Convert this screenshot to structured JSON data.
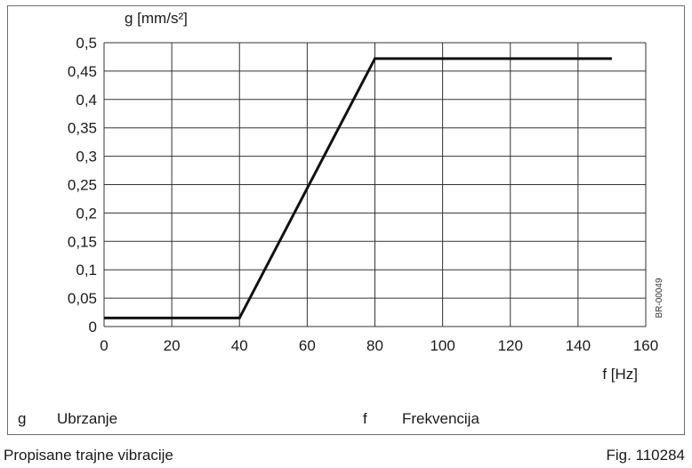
{
  "chart_data": {
    "type": "line",
    "ylabel": "g [mm/s²]",
    "xlabel": "f [Hz]",
    "xlim": [
      0,
      160
    ],
    "ylim": [
      0,
      0.5
    ],
    "x_ticks": [
      0,
      20,
      40,
      60,
      80,
      100,
      120,
      140,
      160
    ],
    "y_ticks": [
      0,
      0.05,
      0.1,
      0.15,
      0.2,
      0.25,
      0.3,
      0.35,
      0.4,
      0.45,
      0.5
    ],
    "x_tick_labels": [
      "0",
      "20",
      "40",
      "60",
      "80",
      "100",
      "120",
      "140",
      "160"
    ],
    "y_tick_labels": [
      "0",
      "0,05",
      "0,1",
      "0,15",
      "0,2",
      "0,25",
      "0,3",
      "0,35",
      "0,4",
      "0,45",
      "0,5"
    ],
    "grid": true,
    "series": [
      {
        "x": [
          0,
          40,
          80,
          150
        ],
        "y": [
          0.015,
          0.015,
          0.472,
          0.472
        ]
      }
    ],
    "side_code": "BR-00049"
  },
  "legend": [
    {
      "symbol": "g",
      "text": "Ubrzanje"
    },
    {
      "symbol": "f",
      "text": "Frekvencija"
    }
  ],
  "caption": {
    "left": "Propisane trajne vibracije",
    "right": "Fig. 110284"
  },
  "colors": {
    "line": "#111111",
    "grid": "#333333",
    "frame": "#6f6f6f"
  }
}
